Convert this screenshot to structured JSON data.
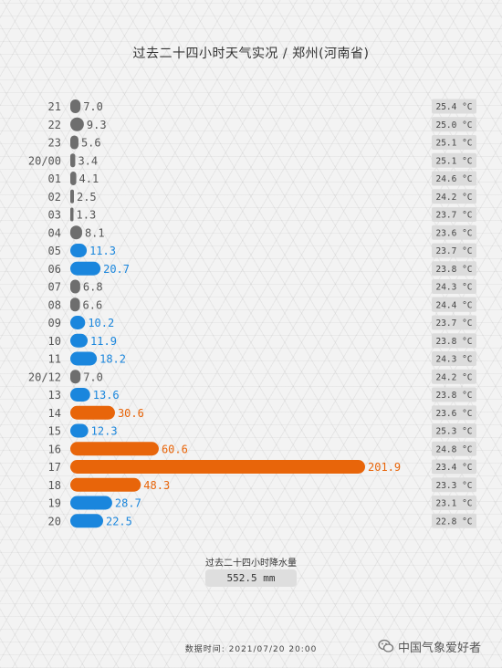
{
  "title": "过去二十四小时天气实况 / 郑州(河南省)",
  "summary": {
    "label": "过去二十四小时降水量",
    "value": "552.5 mm"
  },
  "footer": {
    "label": "数据时间:",
    "datetime": "2021/07/20 20:00"
  },
  "watermark": {
    "text": "中国气象爱好者",
    "icon": "wechat-icon"
  },
  "colors": {
    "gray": "#6e6e6e",
    "blue": "#1a86dd",
    "orange": "#e8650a",
    "temp_bg": "#dcdcdc"
  },
  "temp_unit": "°C",
  "chart_data": {
    "type": "bar",
    "orientation": "horizontal",
    "categories": [
      "21",
      "22",
      "23",
      "20/00",
      "01",
      "02",
      "03",
      "04",
      "05",
      "06",
      "07",
      "08",
      "09",
      "10",
      "11",
      "20/12",
      "13",
      "14",
      "15",
      "16",
      "17",
      "18",
      "19",
      "20"
    ],
    "series": [
      {
        "values": [
          7.0,
          9.3,
          5.6,
          3.4,
          4.1,
          2.5,
          1.3,
          8.1,
          11.3,
          20.7,
          6.8,
          6.6,
          10.2,
          11.9,
          18.2,
          7.0,
          13.6,
          30.6,
          12.3,
          60.6,
          201.9,
          48.3,
          28.7,
          22.5
        ]
      }
    ],
    "temperatures": [
      25.4,
      25.0,
      25.1,
      25.1,
      24.6,
      24.2,
      23.7,
      23.6,
      23.7,
      23.8,
      24.3,
      24.4,
      23.7,
      23.8,
      24.3,
      24.2,
      23.8,
      23.6,
      25.3,
      24.8,
      23.4,
      23.3,
      23.1,
      22.8
    ],
    "xlim": [
      0,
      201.9
    ]
  }
}
